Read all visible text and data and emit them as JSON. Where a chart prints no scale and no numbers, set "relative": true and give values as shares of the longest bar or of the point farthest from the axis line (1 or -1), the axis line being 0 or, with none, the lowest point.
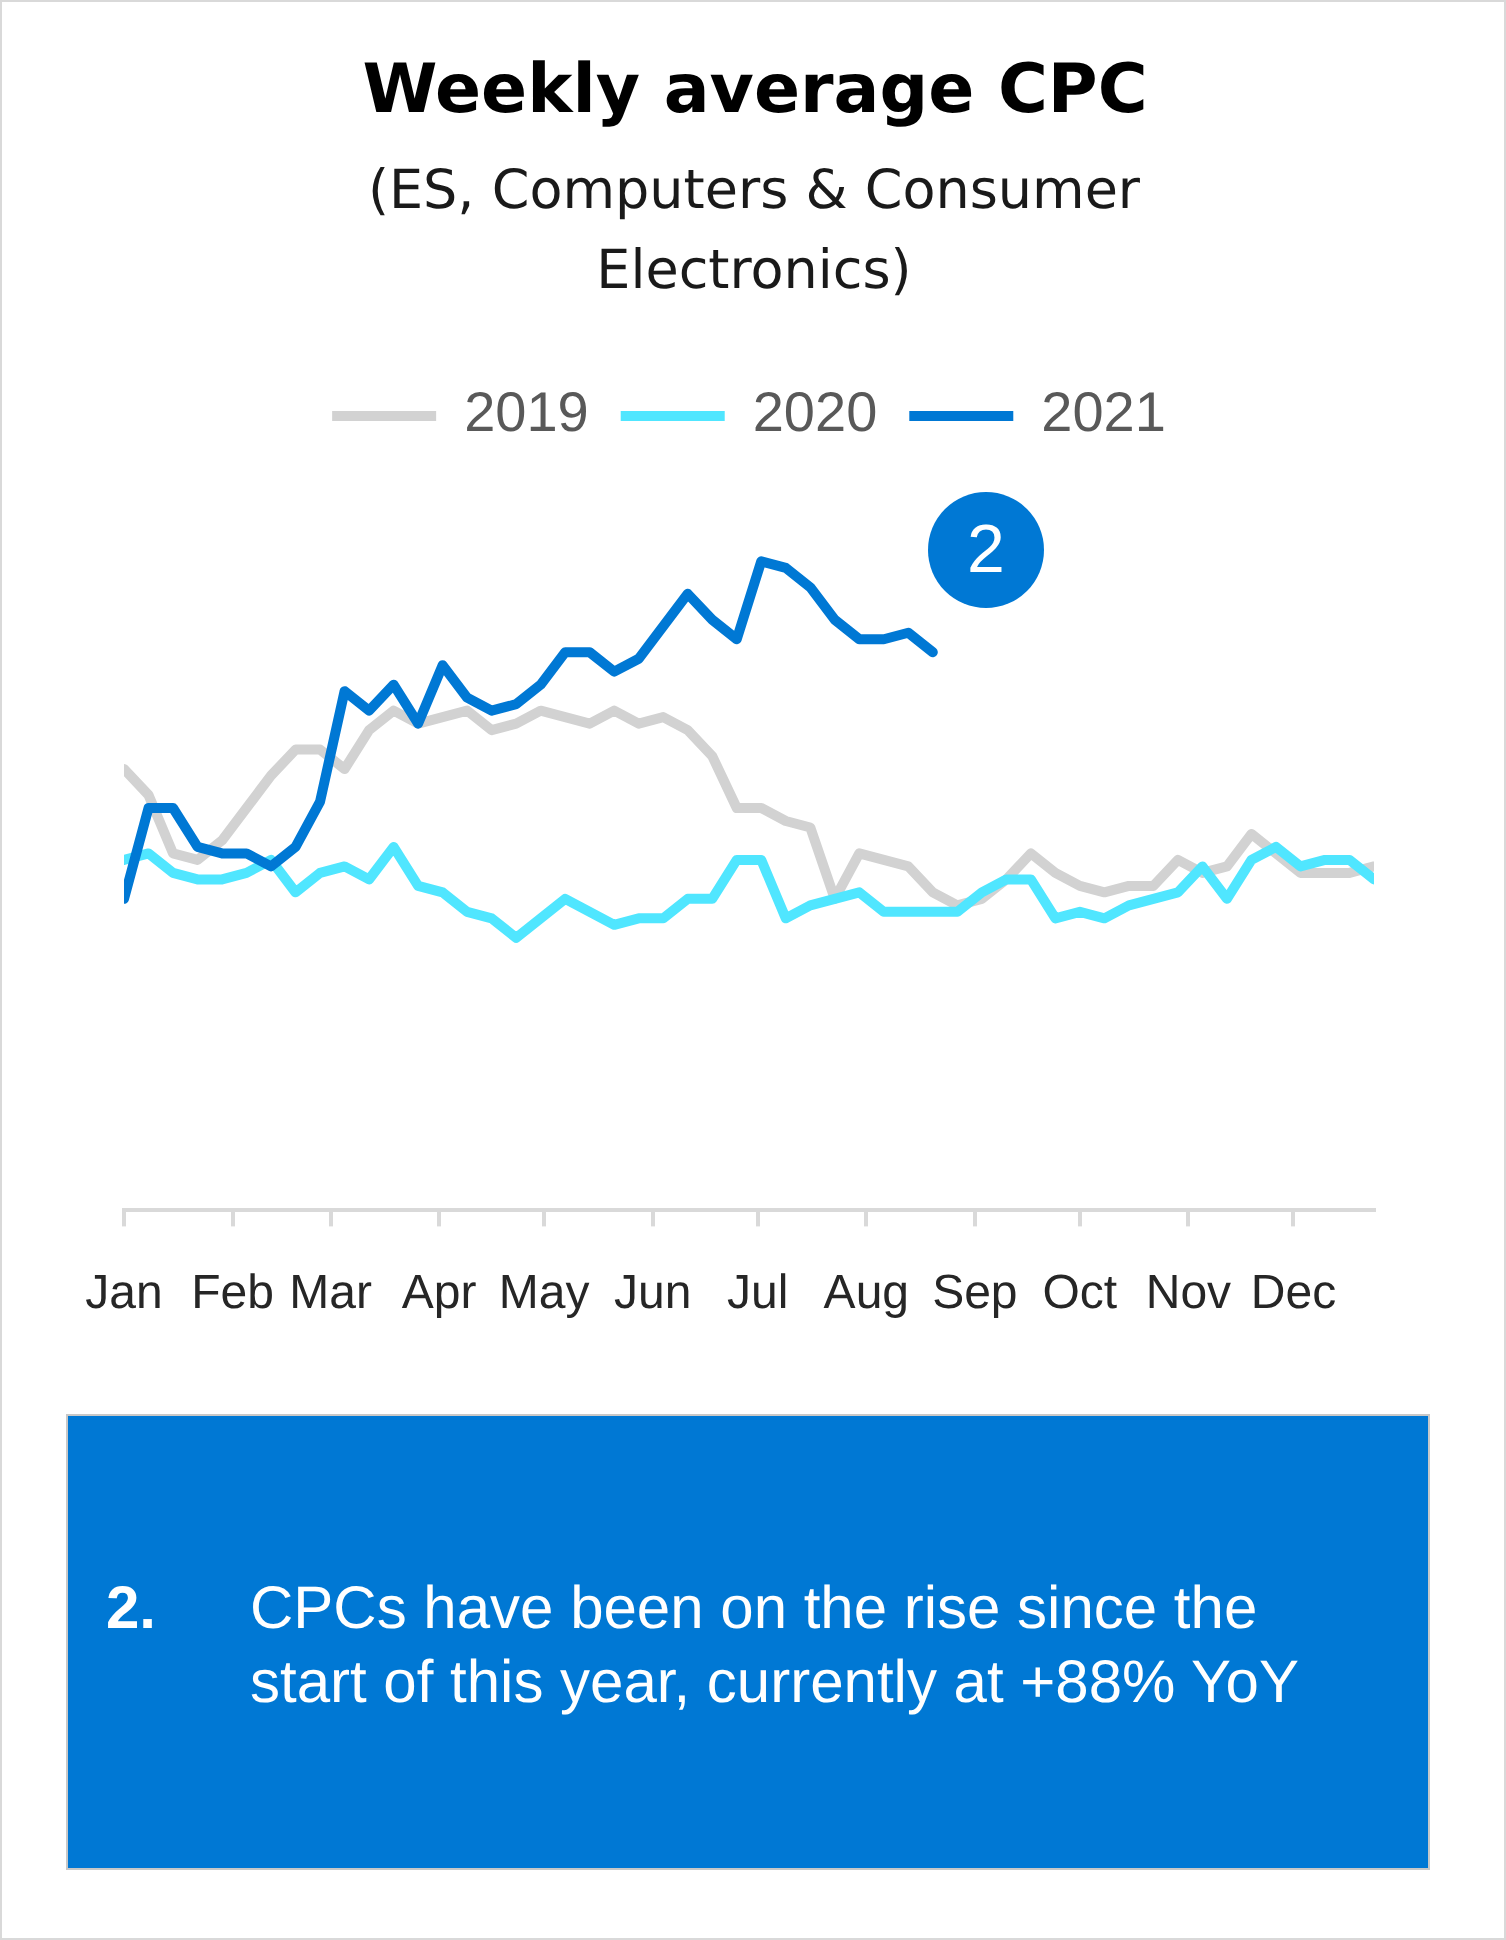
{
  "chart_data": {
    "type": "line",
    "title": "Weekly average CPC",
    "subtitle": "(ES, Computers & Consumer Electronics)",
    "relative": true,
    "x": [
      "--01-01",
      "--01-08",
      "--01-15",
      "--01-22",
      "--01-29",
      "--02-05",
      "--02-12",
      "--02-19",
      "--02-26",
      "--03-05",
      "--03-12",
      "--03-19",
      "--03-26",
      "--04-02",
      "--04-09",
      "--04-16",
      "--04-23",
      "--04-30",
      "--05-07",
      "--05-14",
      "--05-21",
      "--05-28",
      "--06-04",
      "--06-11",
      "--06-18",
      "--06-25",
      "--07-02",
      "--07-09",
      "--07-16",
      "--07-23",
      "--07-30",
      "--08-06",
      "--08-13",
      "--08-20",
      "--08-27",
      "--09-03",
      "--09-10",
      "--09-17",
      "--09-24",
      "--10-01",
      "--10-08",
      "--10-15",
      "--10-22",
      "--10-29",
      "--11-05",
      "--11-12",
      "--11-19",
      "--11-26",
      "--12-03",
      "--12-10",
      "--12-17",
      "--12-24"
    ],
    "xlim": [
      "--01-01",
      "--12-24"
    ],
    "xticks": [
      {
        "value": "--01-01",
        "label": "Jan"
      },
      {
        "value": "--02-01",
        "label": "Feb"
      },
      {
        "value": "--03-01",
        "label": "Mar"
      },
      {
        "value": "--04-01",
        "label": "Apr"
      },
      {
        "value": "--05-01",
        "label": "May"
      },
      {
        "value": "--06-01",
        "label": "Jun"
      },
      {
        "value": "--07-01",
        "label": "Jul"
      },
      {
        "value": "--08-01",
        "label": "Aug"
      },
      {
        "value": "--09-01",
        "label": "Sep"
      },
      {
        "value": "--10-01",
        "label": "Oct"
      },
      {
        "value": "--11-01",
        "label": "Nov"
      },
      {
        "value": "--12-01",
        "label": "Dec"
      }
    ],
    "series": [
      {
        "name": "2019",
        "color": "#d2d2d2",
        "values": [
          0.68,
          0.64,
          0.55,
          0.54,
          0.57,
          0.62,
          0.67,
          0.71,
          0.71,
          0.68,
          0.74,
          0.77,
          0.75,
          0.76,
          0.77,
          0.74,
          0.75,
          0.77,
          0.76,
          0.75,
          0.77,
          0.75,
          0.76,
          0.74,
          0.7,
          0.62,
          0.62,
          0.6,
          0.59,
          0.48,
          0.55,
          0.54,
          0.53,
          0.49,
          0.47,
          0.48,
          0.51,
          0.55,
          0.52,
          0.5,
          0.49,
          0.5,
          0.5,
          0.54,
          0.52,
          0.53,
          0.58,
          0.55,
          0.52,
          0.52,
          0.52,
          0.53
        ]
      },
      {
        "name": "2020",
        "color": "#50e6ff",
        "values": [
          0.54,
          0.55,
          0.52,
          0.51,
          0.51,
          0.52,
          0.54,
          0.49,
          0.52,
          0.53,
          0.51,
          0.56,
          0.5,
          0.49,
          0.46,
          0.45,
          0.42,
          0.45,
          0.48,
          0.46,
          0.44,
          0.45,
          0.45,
          0.48,
          0.48,
          0.54,
          0.54,
          0.45,
          0.47,
          0.48,
          0.49,
          0.46,
          0.46,
          0.46,
          0.46,
          0.49,
          0.51,
          0.51,
          0.45,
          0.46,
          0.45,
          0.47,
          0.48,
          0.49,
          0.53,
          0.48,
          0.54,
          0.56,
          0.53,
          0.54,
          0.54,
          0.51
        ]
      },
      {
        "name": "2021",
        "color": "#0078d4",
        "x": [
          "--01-01",
          "--01-08",
          "--01-15",
          "--01-22",
          "--01-29",
          "--02-05",
          "--02-12",
          "--02-19",
          "--02-26",
          "--03-05",
          "--03-12",
          "--03-19",
          "--03-26",
          "--04-02",
          "--04-09",
          "--04-16",
          "--04-23",
          "--04-30",
          "--05-07",
          "--05-14",
          "--05-21",
          "--05-28",
          "--06-04",
          "--06-11",
          "--06-18",
          "--06-25",
          "--07-02",
          "--07-09",
          "--07-16",
          "--07-23",
          "--07-30",
          "--08-06",
          "--08-13",
          "--08-20"
        ],
        "values": [
          0.48,
          0.62,
          0.62,
          0.56,
          0.55,
          0.55,
          0.53,
          0.56,
          0.63,
          0.8,
          0.77,
          0.81,
          0.75,
          0.84,
          0.79,
          0.77,
          0.78,
          0.81,
          0.86,
          0.86,
          0.83,
          0.85,
          0.9,
          0.95,
          0.91,
          0.88,
          1,
          0.99,
          0.96,
          0.91,
          0.88,
          0.88,
          0.89,
          0.86
        ]
      }
    ],
    "legend": "top",
    "marker": "none",
    "line_style": "solid",
    "annotations": [
      "2",
      "2.",
      "CPCs have been on the rise since the start of this year, currently at +88% YoY"
    ]
  }
}
